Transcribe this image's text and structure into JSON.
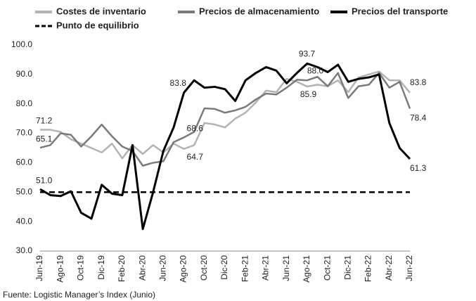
{
  "chart_data": {
    "type": "line",
    "categories": [
      "Jun-19",
      null,
      "Ago-19",
      null,
      "Oct-19",
      null,
      "Dic-19",
      null,
      "Feb-20",
      null,
      "Abr-20",
      null,
      "Jun-20",
      null,
      "Ago-20",
      null,
      "Oct-20",
      null,
      "Dic-20",
      null,
      "Feb-21",
      null,
      "Abr-21",
      null,
      "Jun-21",
      null,
      "Ago-21",
      null,
      "Oct-21",
      null,
      "Dic-21",
      null,
      "Feb-22",
      null,
      "Abr-22",
      null,
      "Jun-22"
    ],
    "series": [
      {
        "name": "Costes de inventario",
        "color": "#b3b3b3",
        "values": [
          71.2,
          71.2,
          70.5,
          68,
          66.5,
          65,
          63.5,
          66.5,
          61.5,
          66,
          63,
          66,
          63.5,
          66.5,
          64.7,
          66,
          73.5,
          73,
          72,
          75,
          77,
          80.5,
          84.5,
          84,
          88.5,
          87.5,
          85.9,
          86.5,
          86,
          88,
          84,
          89,
          90,
          91,
          88,
          88,
          83.8
        ],
        "value_labels": [
          "71.2",
          null,
          null,
          null,
          null,
          null,
          null,
          null,
          null,
          null,
          null,
          null,
          null,
          null,
          "64.7",
          null,
          null,
          null,
          null,
          null,
          null,
          null,
          null,
          null,
          null,
          null,
          "85.9",
          null,
          null,
          null,
          null,
          null,
          null,
          null,
          null,
          null,
          "83.8"
        ]
      },
      {
        "name": "Precios de almacenamiento",
        "color": "#7a7a7a",
        "values": [
          65.1,
          66,
          70,
          69.5,
          65.5,
          69,
          73,
          69,
          65.5,
          64,
          59,
          60,
          60.5,
          67,
          68.6,
          70.5,
          78.5,
          78.3,
          77,
          77.8,
          79,
          81.5,
          83.5,
          83.2,
          85.5,
          88.2,
          88.0,
          89.2,
          86,
          90.5,
          82,
          86,
          86.5,
          90.5,
          85.5,
          87.5,
          78.4
        ],
        "value_labels": [
          "65.1",
          null,
          null,
          null,
          null,
          null,
          null,
          null,
          null,
          null,
          null,
          null,
          null,
          null,
          "68.6",
          null,
          null,
          null,
          null,
          null,
          null,
          null,
          null,
          null,
          null,
          null,
          "88.0",
          null,
          null,
          null,
          null,
          null,
          null,
          null,
          null,
          null,
          "78.4"
        ]
      },
      {
        "name": "Precios del transporte",
        "color": "#000000",
        "values": [
          51,
          49,
          48.7,
          50.3,
          43,
          41,
          52.5,
          49.5,
          49,
          66,
          37.5,
          50,
          64,
          72,
          83.8,
          88,
          85.5,
          85.8,
          85,
          81,
          88,
          90.5,
          92.5,
          91.3,
          87,
          90.5,
          93.7,
          92.5,
          90.8,
          93.3,
          87.5,
          88.5,
          89,
          90,
          73.5,
          65,
          61.3
        ],
        "value_labels": [
          "51.0",
          null,
          null,
          null,
          null,
          null,
          null,
          null,
          null,
          null,
          null,
          null,
          null,
          null,
          "83.8",
          null,
          null,
          null,
          null,
          null,
          null,
          null,
          null,
          null,
          null,
          null,
          "93.7",
          null,
          null,
          null,
          null,
          null,
          null,
          null,
          null,
          null,
          "61.3"
        ]
      }
    ],
    "threshold": {
      "name": "Punto de equilibrio",
      "value": 50,
      "color": "#000000"
    },
    "ylim": [
      30,
      100
    ],
    "yticks": [
      {
        "value": 30,
        "label": "30.0"
      },
      {
        "value": 40,
        "label": "40.0"
      },
      {
        "value": 50,
        "label": "50.0"
      },
      {
        "value": 60,
        "label": "60.0"
      },
      {
        "value": 70,
        "label": "70.0"
      },
      {
        "value": 80,
        "label": "80.0"
      },
      {
        "value": 90,
        "label": "90.0"
      },
      {
        "value": 100,
        "label": "100.0"
      }
    ],
    "grid": false,
    "source": "Fuente: Logistic Manager’s Index (Junio)"
  }
}
